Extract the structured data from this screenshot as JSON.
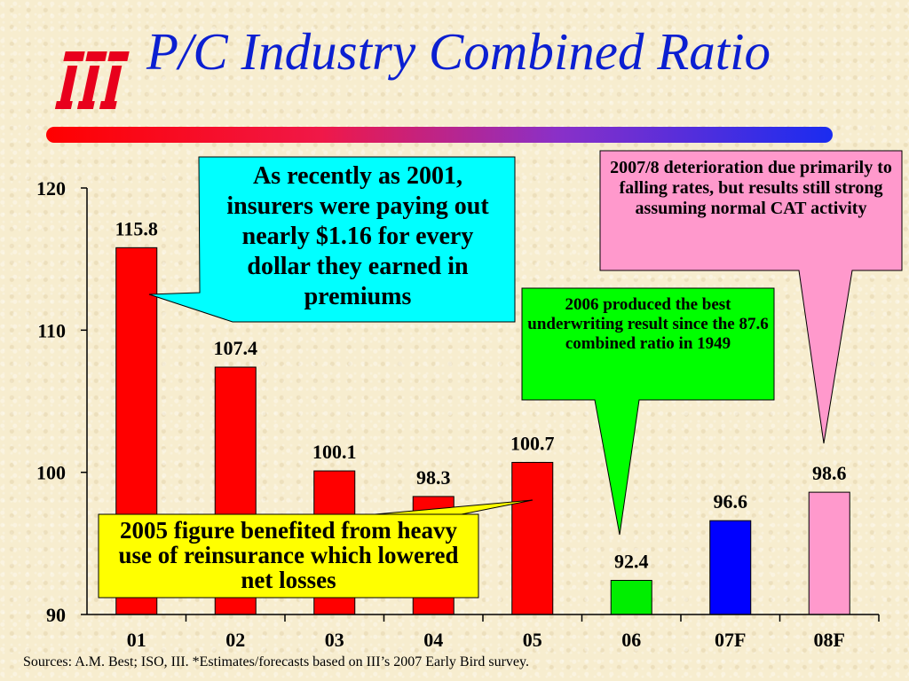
{
  "slide": {
    "title": "P/C Industry Combined Ratio",
    "sources": "Sources: A.M. Best; ISO, III.  *Estimates/forecasts based on III’s 2007 Early Bird survey."
  },
  "logo": {
    "icon": "iii-logo-icon",
    "color": "#e8001c"
  },
  "chart_data": {
    "type": "bar",
    "categories": [
      "01",
      "02",
      "03",
      "04",
      "05",
      "06",
      "07F",
      "08F"
    ],
    "values": [
      115.8,
      107.4,
      100.1,
      98.3,
      100.7,
      92.4,
      96.6,
      98.6
    ],
    "value_labels": [
      "115.8",
      "107.4",
      "100.1",
      "98.3",
      "100.7",
      "92.4",
      "96.6",
      "98.6"
    ],
    "bar_colors": [
      "#ff0000",
      "#ff0000",
      "#ff0000",
      "#ff0000",
      "#ff0000",
      "#00ee00",
      "#0000ff",
      "#ff99cc"
    ],
    "ylim": [
      90,
      120
    ],
    "yticks": [
      "90",
      "100",
      "110",
      "120"
    ],
    "grid": false,
    "title": "",
    "xlabel": "",
    "ylabel": ""
  },
  "callouts": {
    "cyan": {
      "text": "As recently as 2001, insurers were paying out nearly $1.16 for every dollar they earned in premiums",
      "color": "#00ffff"
    },
    "pink": {
      "text": "2007/8 deterioration due primarily to falling rates, but results still strong assuming normal  CAT activity",
      "color": "#ff99cc"
    },
    "green": {
      "text": "2006  produced the best underwriting result since the 87.6 combined ratio in 1949",
      "color": "#00ff00"
    },
    "yellow": {
      "text": "2005 figure benefited from heavy use of reinsurance which lowered net losses",
      "color": "#ffff00"
    }
  }
}
